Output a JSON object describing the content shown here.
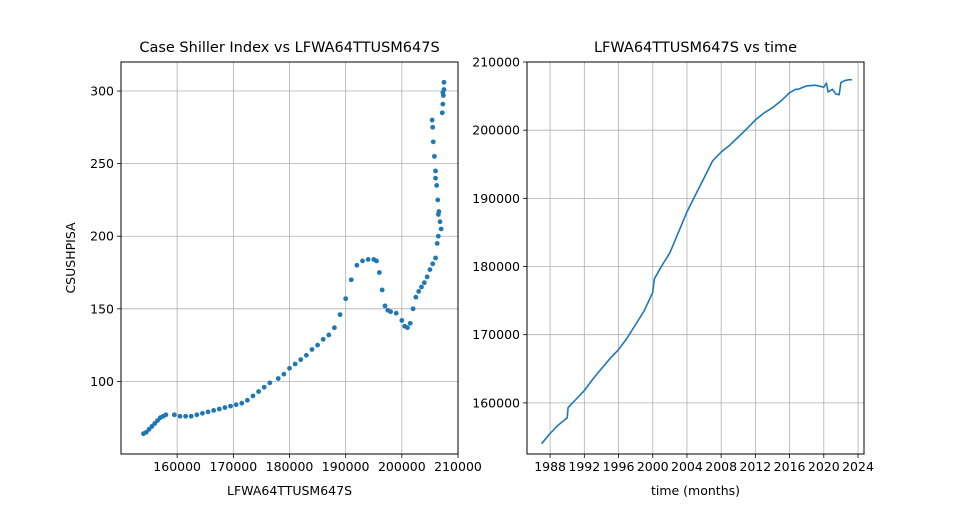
{
  "chart_data": [
    {
      "type": "scatter",
      "title": "Case Shiller Index vs LFWA64TTUSM647S",
      "xlabel": "LFWA64TTUSM647S",
      "ylabel": "CSUSHPISA",
      "xlim": [
        150000,
        210000
      ],
      "ylim": [
        50,
        320
      ],
      "xticks": [
        {
          "value": 160000,
          "label": "160000"
        },
        {
          "value": 170000,
          "label": "170000"
        },
        {
          "value": 180000,
          "label": "180000"
        },
        {
          "value": 190000,
          "label": "190000"
        },
        {
          "value": 200000,
          "label": "200000"
        },
        {
          "value": 210000,
          "label": "210000"
        }
      ],
      "yticks": [
        {
          "value": 100,
          "label": "100"
        },
        {
          "value": 150,
          "label": "150"
        },
        {
          "value": 200,
          "label": "200"
        },
        {
          "value": 250,
          "label": "250"
        },
        {
          "value": 300,
          "label": "300"
        }
      ],
      "grid": true,
      "color": "#1f77b4",
      "points": [
        [
          154000,
          64
        ],
        [
          154500,
          65
        ],
        [
          155000,
          67
        ],
        [
          155500,
          69
        ],
        [
          156000,
          71
        ],
        [
          156500,
          73
        ],
        [
          157000,
          75
        ],
        [
          157500,
          76
        ],
        [
          158000,
          77
        ],
        [
          159500,
          77
        ],
        [
          160500,
          76
        ],
        [
          161500,
          76
        ],
        [
          162500,
          76
        ],
        [
          163500,
          77
        ],
        [
          164500,
          78
        ],
        [
          165500,
          79
        ],
        [
          166500,
          80
        ],
        [
          167500,
          81
        ],
        [
          168500,
          82
        ],
        [
          169500,
          83
        ],
        [
          170500,
          84
        ],
        [
          171500,
          85
        ],
        [
          172500,
          87
        ],
        [
          173500,
          90
        ],
        [
          174500,
          93
        ],
        [
          175500,
          96
        ],
        [
          176500,
          99
        ],
        [
          178000,
          102
        ],
        [
          179000,
          105
        ],
        [
          180000,
          109
        ],
        [
          181000,
          112
        ],
        [
          182000,
          115
        ],
        [
          183000,
          118
        ],
        [
          184000,
          122
        ],
        [
          185000,
          125
        ],
        [
          186000,
          129
        ],
        [
          187000,
          132
        ],
        [
          188000,
          137
        ],
        [
          189000,
          146
        ],
        [
          190000,
          157
        ],
        [
          191000,
          170
        ],
        [
          192000,
          180
        ],
        [
          193000,
          183
        ],
        [
          194000,
          184
        ],
        [
          195000,
          184
        ],
        [
          195500,
          183
        ],
        [
          196000,
          175
        ],
        [
          196500,
          163
        ],
        [
          197000,
          152
        ],
        [
          197500,
          149
        ],
        [
          198000,
          148
        ],
        [
          199000,
          147
        ],
        [
          200000,
          142
        ],
        [
          200500,
          138
        ],
        [
          201000,
          137
        ],
        [
          201500,
          140
        ],
        [
          202000,
          150
        ],
        [
          202500,
          158
        ],
        [
          203000,
          162
        ],
        [
          203500,
          165
        ],
        [
          204000,
          168
        ],
        [
          204500,
          172
        ],
        [
          205000,
          177
        ],
        [
          205500,
          181
        ],
        [
          206000,
          185
        ],
        [
          206300,
          195
        ],
        [
          206500,
          200
        ],
        [
          206800,
          210
        ],
        [
          206600,
          217
        ],
        [
          206400,
          225
        ],
        [
          206200,
          235
        ],
        [
          206000,
          245
        ],
        [
          205800,
          255
        ],
        [
          205600,
          265
        ],
        [
          205500,
          275
        ],
        [
          205400,
          280
        ],
        [
          206000,
          240
        ],
        [
          206500,
          215
        ],
        [
          207000,
          205
        ],
        [
          207200,
          285
        ],
        [
          207300,
          291
        ],
        [
          207400,
          297
        ],
        [
          207500,
          301
        ],
        [
          207500,
          306
        ],
        [
          207300,
          299
        ]
      ]
    },
    {
      "type": "line",
      "title": "LFWA64TTUSM647S vs time",
      "xlabel": "time (months)",
      "ylabel": "",
      "xlim": [
        1985.3,
        2024.7
      ],
      "ylim": [
        152500,
        210000
      ],
      "xticks": [
        {
          "value": 1988,
          "label": "1988"
        },
        {
          "value": 1992,
          "label": "1992"
        },
        {
          "value": 1996,
          "label": "1996"
        },
        {
          "value": 2000,
          "label": "2000"
        },
        {
          "value": 2004,
          "label": "2004"
        },
        {
          "value": 2008,
          "label": "2008"
        },
        {
          "value": 2012,
          "label": "2012"
        },
        {
          "value": 2016,
          "label": "2016"
        },
        {
          "value": 2020,
          "label": "2020"
        },
        {
          "value": 2024,
          "label": "2024"
        }
      ],
      "yticks": [
        {
          "value": 160000,
          "label": "160000"
        },
        {
          "value": 170000,
          "label": "170000"
        },
        {
          "value": 180000,
          "label": "180000"
        },
        {
          "value": 190000,
          "label": "190000"
        },
        {
          "value": 200000,
          "label": "200000"
        },
        {
          "value": 210000,
          "label": "210000"
        }
      ],
      "grid": true,
      "color": "#1f77b4",
      "series": [
        {
          "x": [
            1987.0,
            1988.0,
            1989.0,
            1990.0,
            1990.1,
            1991.0,
            1992.0,
            1993.0,
            1994.0,
            1995.0,
            1996.0,
            1997.0,
            1998.0,
            1999.0,
            2000.0,
            2000.2,
            2001.0,
            2002.0,
            2003.0,
            2004.0,
            2005.0,
            2006.0,
            2007.0,
            2008.0,
            2009.0,
            2010.0,
            2011.0,
            2012.0,
            2013.0,
            2014.0,
            2015.0,
            2016.0,
            2016.7,
            2017.0,
            2018.0,
            2019.0,
            2020.0,
            2020.3,
            2020.5,
            2021.0,
            2021.4,
            2021.8,
            2022.0,
            2022.5,
            2023.0,
            2023.3
          ],
          "y": [
            154000,
            155500,
            156800,
            157800,
            159300,
            160500,
            161800,
            163500,
            165000,
            166500,
            167800,
            169500,
            171500,
            173500,
            176200,
            178200,
            180000,
            182000,
            185000,
            188000,
            190500,
            193000,
            195500,
            196800,
            197800,
            199000,
            200200,
            201500,
            202500,
            203300,
            204300,
            205500,
            206000,
            206000,
            206500,
            206600,
            206300,
            206900,
            205600,
            206000,
            205300,
            205200,
            207000,
            207300,
            207400,
            207400
          ]
        }
      ]
    }
  ]
}
